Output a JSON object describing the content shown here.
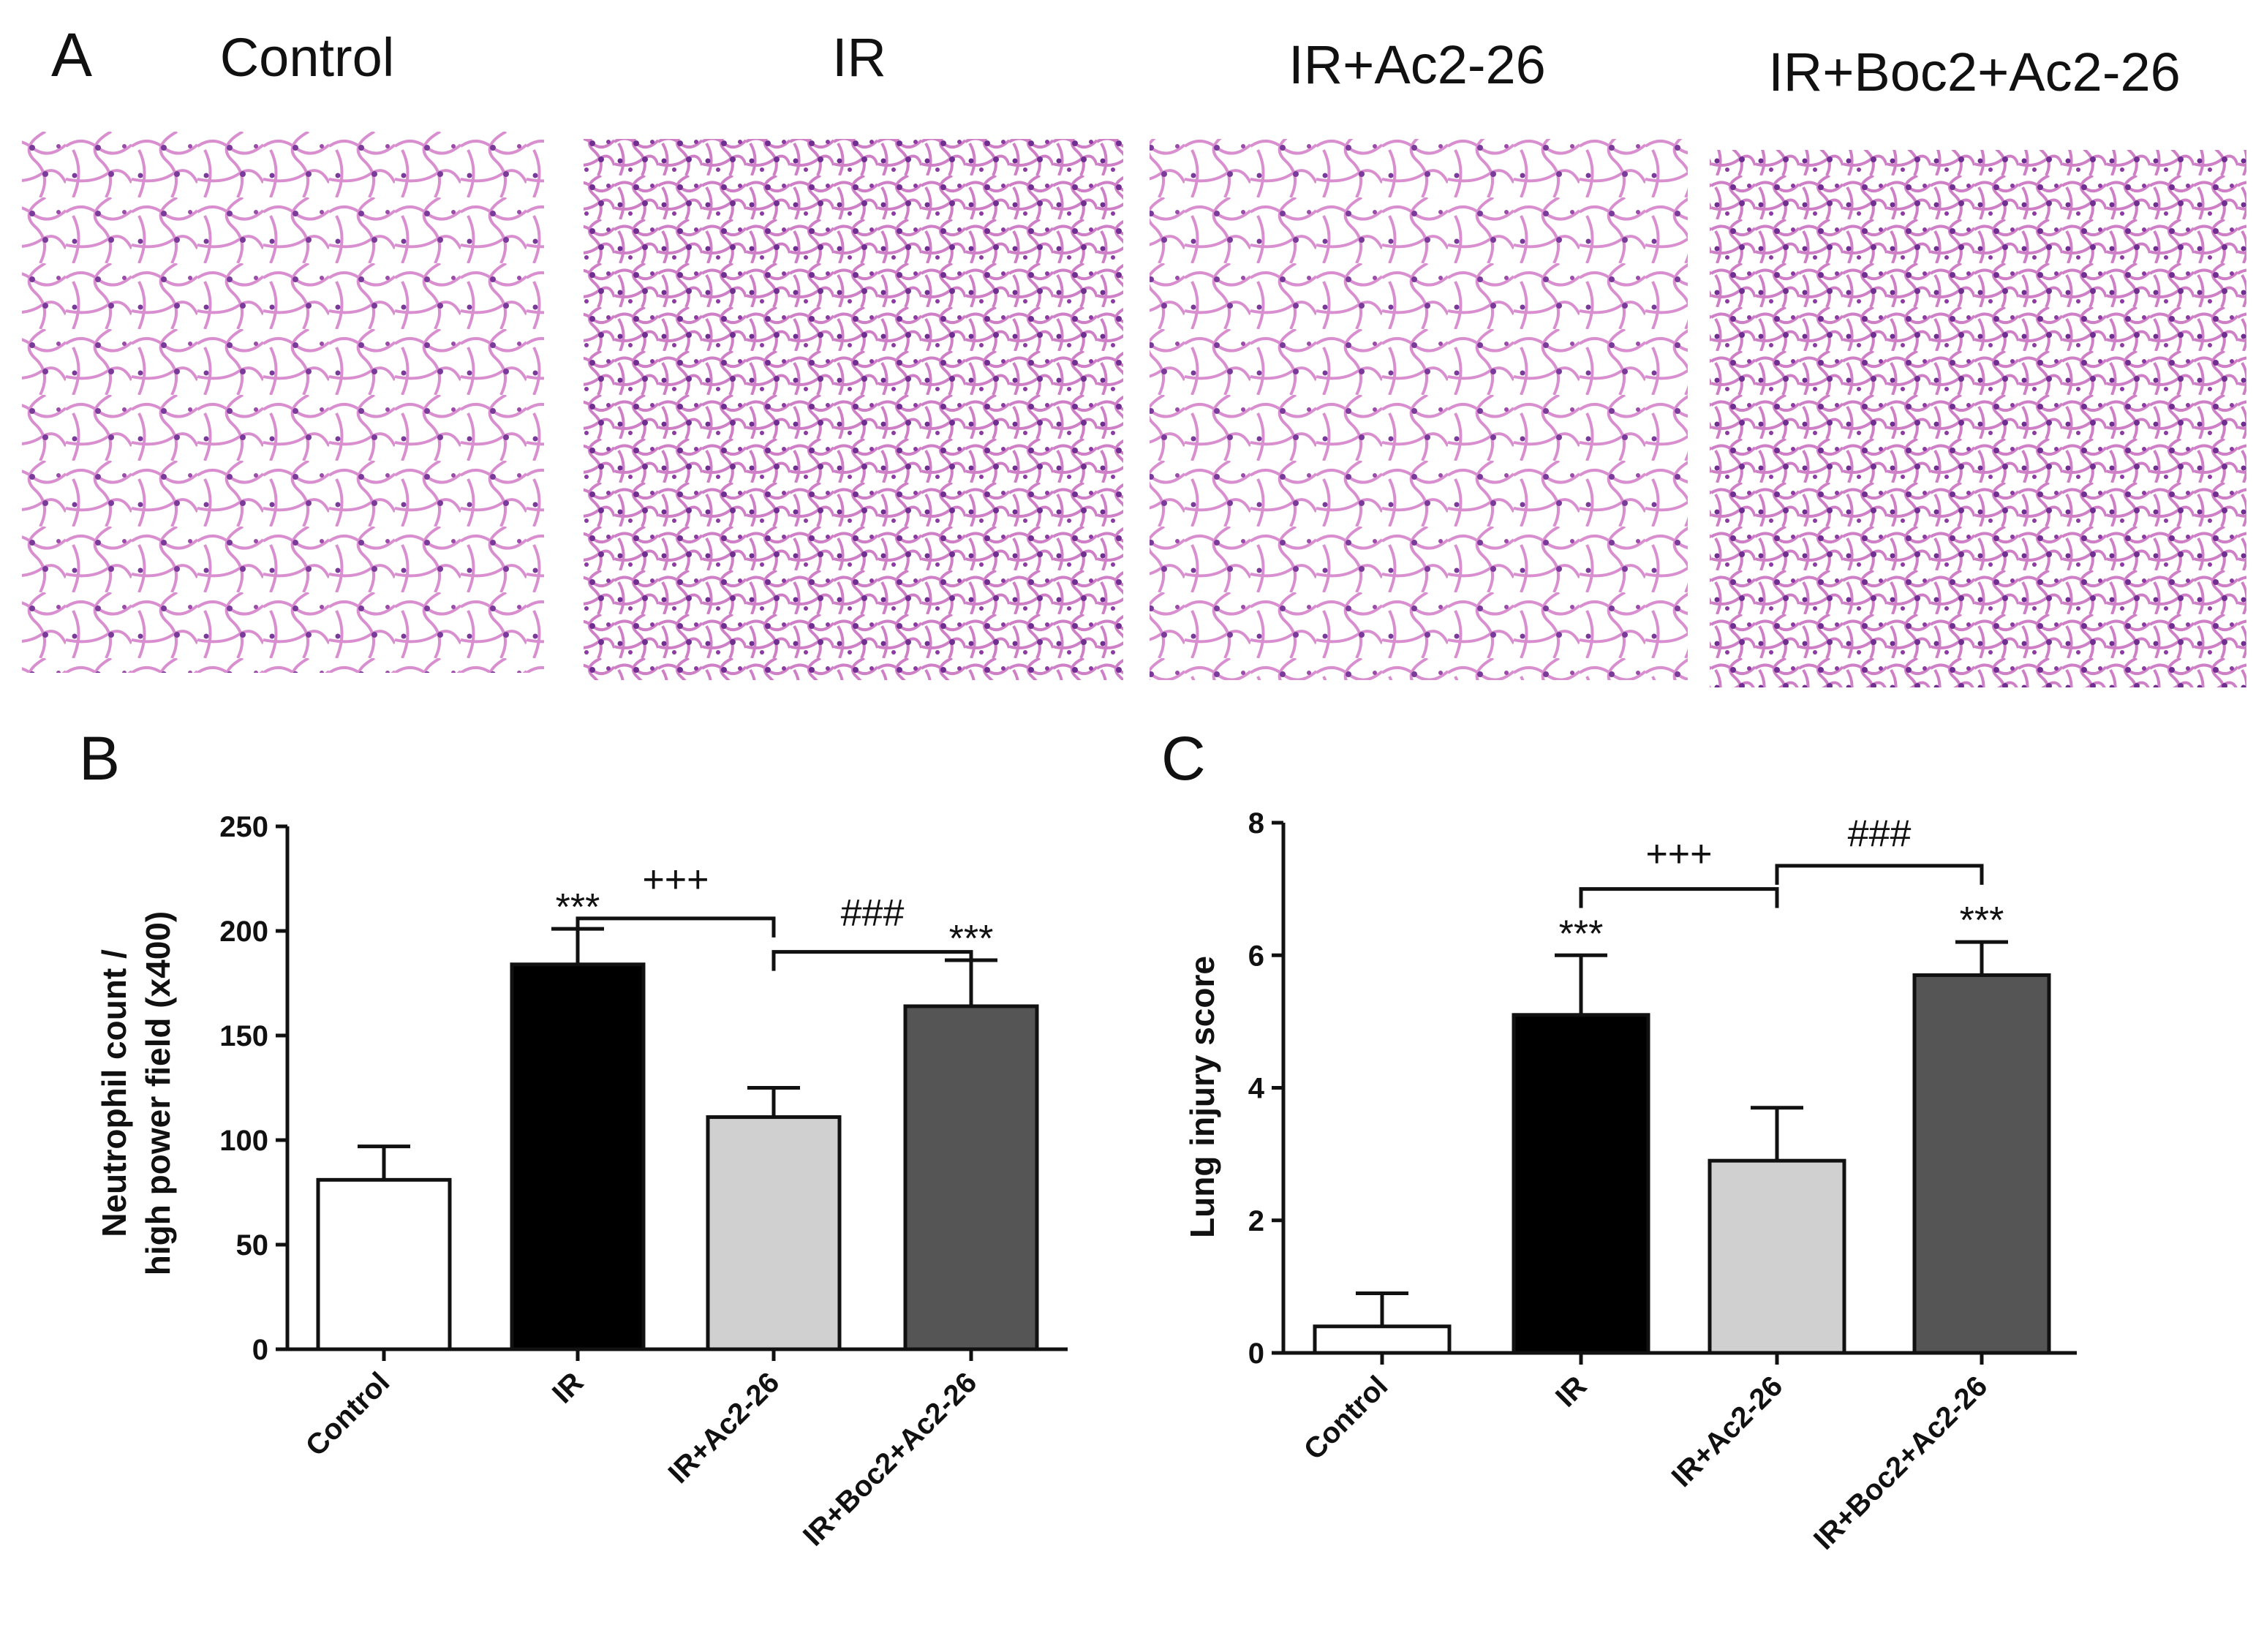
{
  "panel_a": {
    "label": "A",
    "groups": [
      "Control",
      "IR",
      "IR+Ac2-26",
      "IR+Boc2+Ac2-26"
    ]
  },
  "chart_data": [
    {
      "panel": "B",
      "type": "bar",
      "categories": [
        "Control",
        "IR",
        "IR+Ac2-26",
        "IR+Boc2+Ac2-26"
      ],
      "values": [
        81,
        184,
        111,
        164
      ],
      "errors": [
        16,
        17,
        14,
        22
      ],
      "colors": [
        "#ffffff",
        "#000000",
        "#d0d0d0",
        "#555555"
      ],
      "ylabel_lines": [
        "Neutrophil count /",
        "high power field (x400)"
      ],
      "ylim": [
        0,
        250
      ],
      "yticks": [
        0,
        50,
        100,
        150,
        200,
        250
      ],
      "star_labels": [
        "",
        "***",
        "",
        "***"
      ],
      "comparisons": [
        {
          "from": 1,
          "to": 2,
          "label": "+++",
          "level": 206,
          "label_level": 222
        },
        {
          "from": 2,
          "to": 3,
          "label": "###",
          "level": 190,
          "label_level": 206
        }
      ]
    },
    {
      "panel": "C",
      "type": "bar",
      "categories": [
        "Control",
        "IR",
        "IR+Ac2-26",
        "IR+Boc2+Ac2-26"
      ],
      "values": [
        0.4,
        5.1,
        2.9,
        5.7
      ],
      "errors": [
        0.5,
        0.9,
        0.8,
        0.5
      ],
      "colors": [
        "#ffffff",
        "#000000",
        "#d0d0d0",
        "#555555"
      ],
      "ylabel_lines": [
        "Lung injury score"
      ],
      "ylim": [
        0,
        8
      ],
      "yticks": [
        0,
        2,
        4,
        6,
        8
      ],
      "star_labels": [
        "",
        "***",
        "",
        "***"
      ],
      "comparisons": [
        {
          "from": 1,
          "to": 2,
          "label": "+++",
          "level": 7.0,
          "label_level": 7.45
        },
        {
          "from": 2,
          "to": 3,
          "label": "###",
          "level": 7.35,
          "label_level": 7.75
        }
      ]
    }
  ]
}
